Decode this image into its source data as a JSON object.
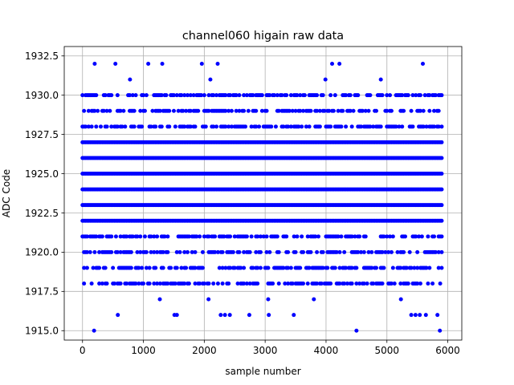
{
  "chart_data": {
    "type": "scatter",
    "title": "channel060 higain raw data",
    "xlabel": "sample number",
    "ylabel": "ADC Code",
    "xlim": [
      -300,
      6230
    ],
    "ylim": [
      1914.4,
      1933.1
    ],
    "xticks": [
      "0",
      "1000",
      "2000",
      "3000",
      "4000",
      "5000",
      "6000"
    ],
    "xtick_values": [
      0,
      1000,
      2000,
      3000,
      4000,
      5000,
      6000
    ],
    "yticks": [
      "1915.0",
      "1917.5",
      "1920.0",
      "1922.5",
      "1925.0",
      "1927.5",
      "1930.0",
      "1932.5"
    ],
    "ytick_values": [
      1915.0,
      1917.5,
      1920.0,
      1922.5,
      1925.0,
      1927.5,
      1930.0,
      1932.5
    ],
    "grid": true,
    "marker_color": "#0000ff",
    "series": [
      {
        "dense_levels": [
          1922,
          1923,
          1924,
          1925,
          1926,
          1927
        ],
        "sparse_levels": [
          1918,
          1919,
          1920,
          1921,
          1928,
          1929,
          1930
        ],
        "sample_range": [
          0,
          5920
        ],
        "points": [
          [
            200,
            1932
          ],
          [
            540,
            1932
          ],
          [
            1080,
            1932
          ],
          [
            1310,
            1932
          ],
          [
            1960,
            1932
          ],
          [
            2220,
            1932
          ],
          [
            4100,
            1932
          ],
          [
            4220,
            1932
          ],
          [
            5590,
            1932
          ],
          [
            780,
            1931
          ],
          [
            2100,
            1931
          ],
          [
            3990,
            1931
          ],
          [
            4900,
            1931
          ],
          [
            190,
            1915
          ],
          [
            4500,
            1915
          ],
          [
            5870,
            1915
          ],
          [
            580,
            1916
          ],
          [
            1510,
            1916
          ],
          [
            1550,
            1916
          ],
          [
            2270,
            1916
          ],
          [
            2340,
            1916
          ],
          [
            2420,
            1916
          ],
          [
            2740,
            1916
          ],
          [
            3060,
            1916
          ],
          [
            3470,
            1916
          ],
          [
            5400,
            1916
          ],
          [
            5470,
            1916
          ],
          [
            5540,
            1916
          ],
          [
            5640,
            1916
          ],
          [
            5830,
            1916
          ],
          [
            1270,
            1917
          ],
          [
            2070,
            1917
          ],
          [
            3050,
            1917
          ],
          [
            3800,
            1917
          ],
          [
            5230,
            1917
          ]
        ]
      }
    ]
  }
}
